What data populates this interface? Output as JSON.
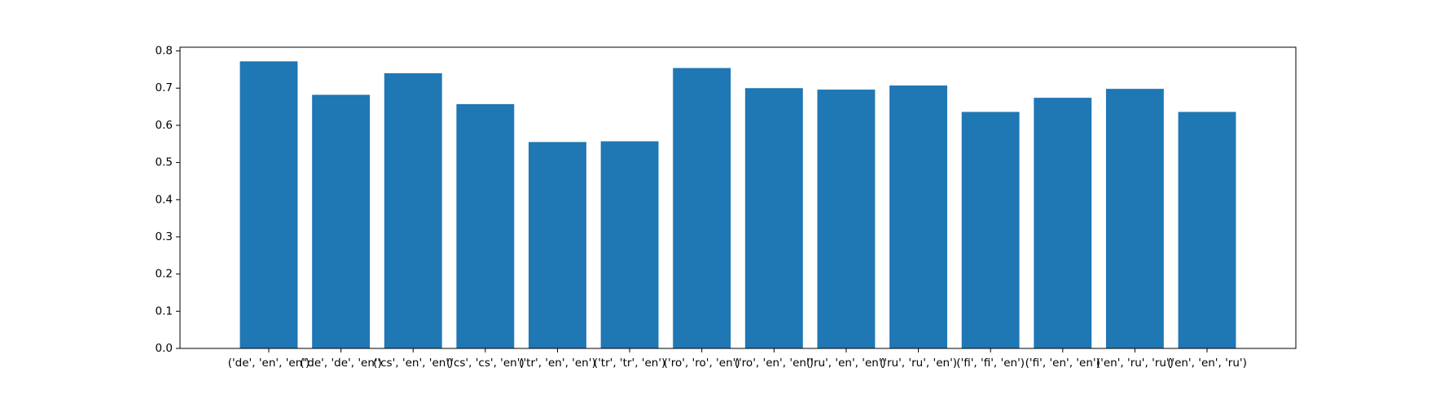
{
  "chart_data": {
    "type": "bar",
    "title": "",
    "xlabel": "",
    "ylabel": "",
    "categories": [
      "('de', 'en', 'en')",
      "('de', 'de', 'en')",
      "('cs', 'en', 'en')",
      "('cs', 'cs', 'en')",
      "('tr', 'en', 'en')",
      "('tr', 'tr', 'en')",
      "('ro', 'ro', 'en')",
      "('ro', 'en', 'en')",
      "('ru', 'en', 'en')",
      "('ru', 'ru', 'en')",
      "('fi', 'fi', 'en')",
      "('fi', 'en', 'en')",
      "('en', 'ru', 'ru')",
      "('en', 'en', 'ru')"
    ],
    "values": [
      0.772,
      0.682,
      0.74,
      0.657,
      0.555,
      0.557,
      0.754,
      0.7,
      0.696,
      0.707,
      0.636,
      0.674,
      0.698,
      0.636
    ],
    "ylim": [
      0,
      0.81
    ],
    "yticks": [
      0.0,
      0.1,
      0.2,
      0.3,
      0.4,
      0.5,
      0.6,
      0.7,
      0.8
    ],
    "ytick_labels": [
      "0.0",
      "0.1",
      "0.2",
      "0.3",
      "0.4",
      "0.5",
      "0.6",
      "0.7",
      "0.8"
    ],
    "grid": false,
    "legend": "none",
    "bar_color": "#1f77b4",
    "axis_color": "#000000"
  }
}
